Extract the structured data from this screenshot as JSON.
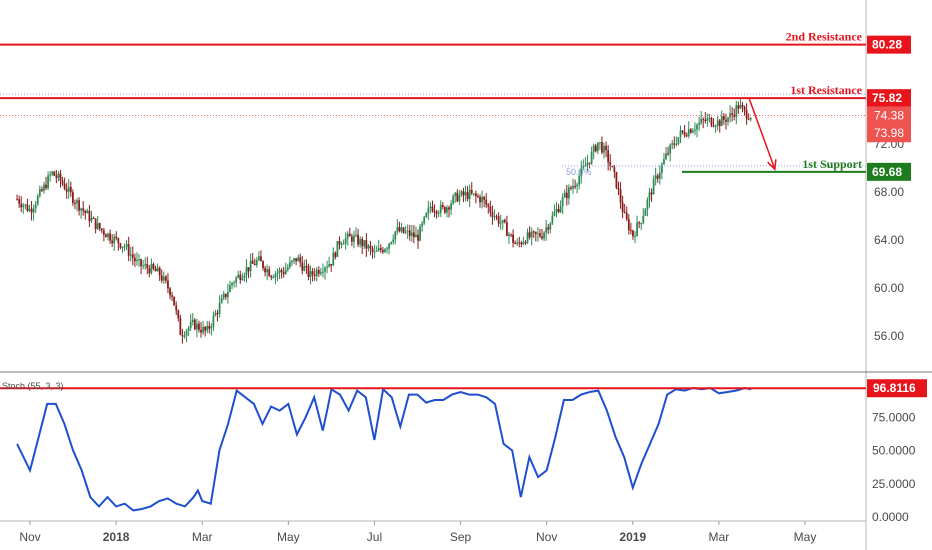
{
  "chart_data": {
    "type": "candlestick",
    "price_axis": {
      "ylim": [
        53.0,
        84.0
      ],
      "ticks": [
        56,
        60,
        64,
        68,
        72
      ],
      "tick_labels": [
        "56.00",
        "60.00",
        "64.00",
        "68.00",
        "72.00"
      ]
    },
    "time_axis": {
      "months": [
        {
          "label": "Nov",
          "pos": 0.0,
          "bold": false
        },
        {
          "label": "2018",
          "pos": 2.0,
          "bold": true
        },
        {
          "label": "Mar",
          "pos": 4.0,
          "bold": false
        },
        {
          "label": "May",
          "pos": 6.0,
          "bold": false
        },
        {
          "label": "Jul",
          "pos": 8.0,
          "bold": false
        },
        {
          "label": "Sep",
          "pos": 10.0,
          "bold": false
        },
        {
          "label": "Nov",
          "pos": 12.0,
          "bold": false
        },
        {
          "label": "2019",
          "pos": 14.0,
          "bold": true
        },
        {
          "label": "Mar",
          "pos": 16.0,
          "bold": false
        },
        {
          "label": "May",
          "pos": 18.0,
          "bold": false
        }
      ]
    },
    "price_path": [
      [
        -0.3,
        67.4
      ],
      [
        0.0,
        66.5
      ],
      [
        0.3,
        68.2
      ],
      [
        0.5,
        69.6
      ],
      [
        0.7,
        69.0
      ],
      [
        1.0,
        67.5
      ],
      [
        1.3,
        66.2
      ],
      [
        1.6,
        65.0
      ],
      [
        1.9,
        64.2
      ],
      [
        2.2,
        63.5
      ],
      [
        2.5,
        62.0
      ],
      [
        2.8,
        61.6
      ],
      [
        3.0,
        61.2
      ],
      [
        3.3,
        59.5
      ],
      [
        3.5,
        56.2
      ],
      [
        3.8,
        57.0
      ],
      [
        4.1,
        56.3
      ],
      [
        4.4,
        58.5
      ],
      [
        4.7,
        60.5
      ],
      [
        5.0,
        61.5
      ],
      [
        5.3,
        62.3
      ],
      [
        5.6,
        61.2
      ],
      [
        5.9,
        61.4
      ],
      [
        6.2,
        62.5
      ],
      [
        6.5,
        61.0
      ],
      [
        6.8,
        61.8
      ],
      [
        7.0,
        62.2
      ],
      [
        7.2,
        64.0
      ],
      [
        7.5,
        64.2
      ],
      [
        7.8,
        63.5
      ],
      [
        8.0,
        62.8
      ],
      [
        8.3,
        63.6
      ],
      [
        8.5,
        64.8
      ],
      [
        8.8,
        64.5
      ],
      [
        9.0,
        64.2
      ],
      [
        9.3,
        66.8
      ],
      [
        9.6,
        66.5
      ],
      [
        9.9,
        67.6
      ],
      [
        10.2,
        67.8
      ],
      [
        10.5,
        67.4
      ],
      [
        10.8,
        66.0
      ],
      [
        11.0,
        65.2
      ],
      [
        11.3,
        63.5
      ],
      [
        11.5,
        64.2
      ],
      [
        11.7,
        64.3
      ],
      [
        11.9,
        64.5
      ],
      [
        12.1,
        65.7
      ],
      [
        12.4,
        67.5
      ],
      [
        12.7,
        69.0
      ],
      [
        13.0,
        70.8
      ],
      [
        13.2,
        72.2
      ],
      [
        13.4,
        71.0
      ],
      [
        13.6,
        69.0
      ],
      [
        13.8,
        66.0
      ],
      [
        14.0,
        64.4
      ],
      [
        14.2,
        65.8
      ],
      [
        14.5,
        68.8
      ],
      [
        14.8,
        71.2
      ],
      [
        15.1,
        72.8
      ],
      [
        15.4,
        73.4
      ],
      [
        15.7,
        74.0
      ],
      [
        16.0,
        73.8
      ],
      [
        16.3,
        74.4
      ],
      [
        16.45,
        75.2
      ],
      [
        16.6,
        74.6
      ],
      [
        16.75,
        74.4
      ]
    ],
    "levels": [
      {
        "name": "2nd Resistance",
        "value": 80.28,
        "label": "80.28",
        "color": "#e8141c"
      },
      {
        "name": "1st Resistance",
        "value": 75.82,
        "label": "75.82",
        "color": "#e8141c"
      },
      {
        "name": "1st Support",
        "value": 69.68,
        "label": "69.68",
        "color": "#1e7b1e"
      }
    ],
    "price_badges": [
      {
        "value": 74.38,
        "label": "74.38",
        "color": "#ef5350"
      },
      {
        "value": 73.98,
        "label": "73.98",
        "color": "#ef5350"
      }
    ],
    "fib_label": "50.0%",
    "forecast_arrow": {
      "from": [
        16.7,
        75.82
      ],
      "to": [
        17.3,
        69.9
      ],
      "color": "#e8141c"
    },
    "oscillator": {
      "name": "Stoch (55, 3, 3)",
      "ylim": [
        0,
        100
      ],
      "ticks": [
        0,
        25,
        50,
        75
      ],
      "tick_labels": [
        "0.0000",
        "25.0000",
        "50.0000",
        "75.0000"
      ],
      "level": {
        "value": 96.8116,
        "label": "96.8116",
        "color": "#e8141c"
      },
      "series_color": "#1f4fd1",
      "values": [
        [
          -0.3,
          55
        ],
        [
          0.0,
          35
        ],
        [
          0.2,
          60
        ],
        [
          0.4,
          85
        ],
        [
          0.6,
          85
        ],
        [
          0.8,
          70
        ],
        [
          1.0,
          50
        ],
        [
          1.2,
          35
        ],
        [
          1.4,
          15
        ],
        [
          1.6,
          8
        ],
        [
          1.8,
          15
        ],
        [
          2.0,
          8
        ],
        [
          2.2,
          10
        ],
        [
          2.4,
          5
        ],
        [
          2.6,
          6
        ],
        [
          2.8,
          8
        ],
        [
          3.0,
          12
        ],
        [
          3.2,
          14
        ],
        [
          3.4,
          10
        ],
        [
          3.6,
          8
        ],
        [
          3.8,
          15
        ],
        [
          3.9,
          20
        ],
        [
          4.0,
          12
        ],
        [
          4.2,
          10
        ],
        [
          4.4,
          50
        ],
        [
          4.6,
          70
        ],
        [
          4.8,
          95
        ],
        [
          5.0,
          90
        ],
        [
          5.2,
          85
        ],
        [
          5.4,
          70
        ],
        [
          5.6,
          83
        ],
        [
          5.8,
          80
        ],
        [
          6.0,
          85
        ],
        [
          6.2,
          62
        ],
        [
          6.4,
          75
        ],
        [
          6.6,
          90
        ],
        [
          6.8,
          65
        ],
        [
          6.9,
          80
        ],
        [
          7.0,
          96
        ],
        [
          7.2,
          92
        ],
        [
          7.4,
          80
        ],
        [
          7.6,
          95
        ],
        [
          7.8,
          90
        ],
        [
          8.0,
          58
        ],
        [
          8.2,
          96
        ],
        [
          8.4,
          90
        ],
        [
          8.6,
          68
        ],
        [
          8.8,
          92
        ],
        [
          9.0,
          92
        ],
        [
          9.2,
          86
        ],
        [
          9.4,
          88
        ],
        [
          9.6,
          88
        ],
        [
          9.8,
          92
        ],
        [
          10.0,
          94
        ],
        [
          10.2,
          92
        ],
        [
          10.4,
          92
        ],
        [
          10.6,
          90
        ],
        [
          10.8,
          85
        ],
        [
          11.0,
          55
        ],
        [
          11.2,
          50
        ],
        [
          11.4,
          15
        ],
        [
          11.6,
          45
        ],
        [
          11.8,
          30
        ],
        [
          12.0,
          35
        ],
        [
          12.2,
          60
        ],
        [
          12.4,
          88
        ],
        [
          12.6,
          88
        ],
        [
          12.8,
          92
        ],
        [
          13.0,
          94
        ],
        [
          13.2,
          95
        ],
        [
          13.4,
          80
        ],
        [
          13.6,
          60
        ],
        [
          13.8,
          45
        ],
        [
          14.0,
          22
        ],
        [
          14.2,
          40
        ],
        [
          14.4,
          55
        ],
        [
          14.6,
          70
        ],
        [
          14.8,
          92
        ],
        [
          15.0,
          96
        ],
        [
          15.2,
          95
        ],
        [
          15.4,
          97
        ],
        [
          15.6,
          96
        ],
        [
          15.8,
          97
        ],
        [
          16.0,
          93
        ],
        [
          16.2,
          94
        ],
        [
          16.4,
          95
        ],
        [
          16.6,
          97
        ],
        [
          16.75,
          96
        ]
      ]
    }
  }
}
